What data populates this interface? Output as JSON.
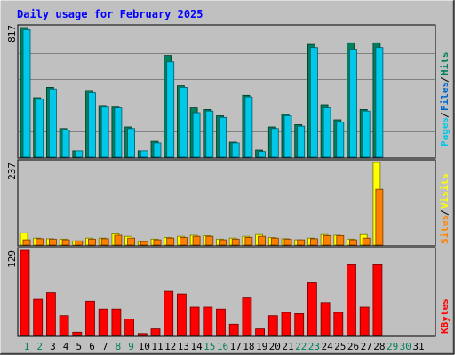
{
  "title": "Daily usage for February 2025",
  "colors": {
    "background": "#c0c0c0",
    "plot_bg": "#c0c0c0",
    "title": "#0000ff",
    "grid": "#808080",
    "hits": "#00805c",
    "files": "#00c8e8",
    "sites": "#ff8000",
    "visits": "#ffff00",
    "kbytes": "#ff0000",
    "weekend_day": "#00805c",
    "weekday": "#000000"
  },
  "chart_data": [
    {
      "type": "bar",
      "panel": "hits-files",
      "categories": [
        "1",
        "2",
        "3",
        "4",
        "5",
        "6",
        "7",
        "8",
        "9",
        "10",
        "11",
        "12",
        "13",
        "14",
        "15",
        "16",
        "17",
        "18",
        "19",
        "20",
        "21",
        "22",
        "23",
        "24",
        "25",
        "26",
        "27",
        "28",
        "29",
        "30",
        "31"
      ],
      "ymax_label": "817",
      "ylim": [
        0,
        817
      ],
      "legend": [
        "Pages",
        "Files",
        "Hits"
      ],
      "series": [
        {
          "name": "Hits",
          "color": "#00805c",
          "values": [
            817,
            375,
            440,
            180,
            40,
            420,
            325,
            315,
            190,
            40,
            100,
            640,
            450,
            310,
            300,
            260,
            95,
            390,
            45,
            190,
            270,
            205,
            710,
            330,
            235,
            720,
            300,
            720,
            0,
            0,
            0
          ]
        },
        {
          "name": "Files",
          "color": "#00c8e8",
          "values": [
            803,
            365,
            430,
            170,
            40,
            405,
            315,
            310,
            180,
            40,
            90,
            600,
            440,
            280,
            290,
            250,
            90,
            380,
            35,
            180,
            260,
            195,
            690,
            310,
            220,
            680,
            290,
            690,
            0,
            0,
            0
          ]
        }
      ]
    },
    {
      "type": "bar",
      "panel": "sites-visits",
      "categories": [
        "1",
        "2",
        "3",
        "4",
        "5",
        "6",
        "7",
        "8",
        "9",
        "10",
        "11",
        "12",
        "13",
        "14",
        "15",
        "16",
        "17",
        "18",
        "19",
        "20",
        "21",
        "22",
        "23",
        "24",
        "25",
        "26",
        "27",
        "28",
        "29",
        "30",
        "31"
      ],
      "ymax_label": "237",
      "ylim": [
        0,
        237
      ],
      "legend": [
        "Sites",
        "Visits"
      ],
      "series": [
        {
          "name": "Visits",
          "color": "#ffff00",
          "values": [
            35,
            20,
            18,
            17,
            12,
            20,
            20,
            32,
            25,
            10,
            17,
            22,
            25,
            28,
            27,
            17,
            20,
            25,
            30,
            22,
            18,
            15,
            20,
            30,
            28,
            17,
            30,
            237,
            0,
            0,
            0
          ]
        },
        {
          "name": "Sites",
          "color": "#ff8000",
          "values": [
            15,
            18,
            17,
            15,
            12,
            17,
            18,
            28,
            20,
            10,
            15,
            20,
            22,
            25,
            25,
            15,
            17,
            22,
            25,
            20,
            17,
            15,
            18,
            27,
            27,
            15,
            20,
            160,
            0,
            0,
            0
          ]
        }
      ]
    },
    {
      "type": "bar",
      "panel": "kbytes",
      "categories": [
        "1",
        "2",
        "3",
        "4",
        "5",
        "6",
        "7",
        "8",
        "9",
        "10",
        "11",
        "12",
        "13",
        "14",
        "15",
        "16",
        "17",
        "18",
        "19",
        "20",
        "21",
        "22",
        "23",
        "24",
        "25",
        "26",
        "27",
        "28",
        "29",
        "30",
        "31"
      ],
      "ymax_label": "129",
      "ylim": [
        0,
        129
      ],
      "legend": [
        "KBytes"
      ],
      "series": [
        {
          "name": "KBytes",
          "color": "#ff0000",
          "values": [
            129,
            55,
            65,
            30,
            5,
            52,
            40,
            40,
            25,
            3,
            10,
            67,
            63,
            43,
            43,
            40,
            17,
            57,
            10,
            30,
            35,
            33,
            80,
            50,
            35,
            107,
            43,
            107,
            0,
            0,
            0
          ]
        }
      ]
    }
  ],
  "xaxis": {
    "weekend_days": [
      "1",
      "2",
      "8",
      "9",
      "15",
      "16",
      "22",
      "23",
      "29",
      "30"
    ]
  }
}
